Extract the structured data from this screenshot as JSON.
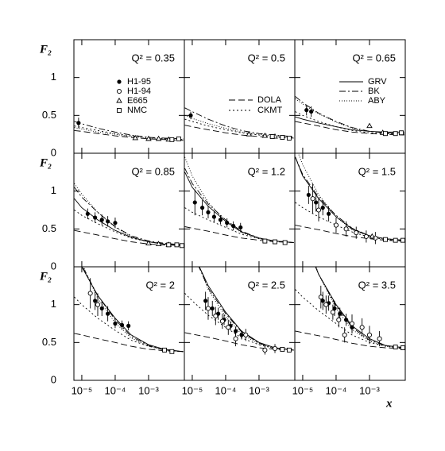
{
  "chart_data": {
    "type": "scatter",
    "ylabel": "F₂",
    "xlabel": "x",
    "xscale": "log",
    "xlim": [
      5.8e-06,
      0.0118
    ],
    "ylim": [
      0,
      1.5
    ],
    "xticks": [
      {
        "value": 1e-05,
        "label": "10⁻⁵"
      },
      {
        "value": 0.0001,
        "label": "10⁻⁴"
      },
      {
        "value": 0.001,
        "label": "10⁻³"
      }
    ],
    "yticks": [
      0,
      0.5,
      1
    ],
    "series": [
      {
        "name": "H1-95",
        "marker": "filled-circle"
      },
      {
        "name": "H1-94",
        "marker": "open-circle"
      },
      {
        "name": "E665",
        "marker": "triangle"
      },
      {
        "name": "NMC",
        "marker": "square"
      }
    ],
    "curves": [
      {
        "name": "DOLA",
        "dash": "8,4"
      },
      {
        "name": "CKMT",
        "dash": "2,3"
      },
      {
        "name": "GRV",
        "dash": "none"
      },
      {
        "name": "BK",
        "dash": "8,3,2,3"
      },
      {
        "name": "ABY",
        "dash": "1,2"
      }
    ],
    "curve_x": [
      6e-06,
      1e-05,
      3e-05,
      0.0001,
      0.0003,
      0.001,
      0.003,
      0.011
    ],
    "panels": [
      {
        "title": "Q² = 0.35",
        "points": [
          {
            "x": [
              8e-06
            ],
            "y": [
              0.4
            ],
            "err": [
              0.07
            ]
          },
          {
            "x": [],
            "y": [],
            "err": []
          },
          {
            "x": [
              0.0004,
              0.001,
              0.002,
              0.004
            ],
            "y": [
              0.2,
              0.19,
              0.19,
              0.18
            ],
            "err": [
              0.02,
              0.02,
              0.02,
              0.02
            ]
          },
          {
            "x": [
              0.005,
              0.008
            ],
            "y": [
              0.18,
              0.19
            ],
            "err": [
              0.01,
              0.01
            ]
          }
        ],
        "curves": [
          [
            0.3,
            0.29,
            0.26,
            0.23,
            0.21,
            0.19,
            0.18,
            0.17
          ],
          [
            0.36,
            0.34,
            0.3,
            0.26,
            0.23,
            0.21,
            0.19,
            0.18
          ],
          null,
          [
            0.42,
            0.39,
            0.33,
            0.28,
            0.24,
            0.21,
            0.2,
            0.19
          ],
          [
            0.34,
            0.32,
            0.28,
            0.25,
            0.22,
            0.2,
            0.19,
            0.18
          ]
        ]
      },
      {
        "title": "Q² = 0.5",
        "points": [
          {
            "x": [
              9e-06
            ],
            "y": [
              0.5
            ],
            "err": [
              0.05
            ]
          },
          {
            "x": [],
            "y": [],
            "err": []
          },
          {
            "x": [
              0.0005,
              0.0015,
              0.003
            ],
            "y": [
              0.25,
              0.23,
              0.22
            ],
            "err": [
              0.02,
              0.02,
              0.02
            ]
          },
          {
            "x": [
              0.0025,
              0.005,
              0.008
            ],
            "y": [
              0.22,
              0.21,
              0.2
            ],
            "err": [
              0.01,
              0.01,
              0.01
            ]
          }
        ],
        "curves": [
          [
            0.37,
            0.35,
            0.31,
            0.27,
            0.24,
            0.22,
            0.21,
            0.2
          ],
          [
            0.45,
            0.42,
            0.36,
            0.31,
            0.27,
            0.24,
            0.22,
            0.21
          ],
          null,
          [
            0.6,
            0.55,
            0.45,
            0.36,
            0.3,
            0.26,
            0.24,
            0.22
          ],
          [
            0.5,
            0.46,
            0.39,
            0.33,
            0.28,
            0.25,
            0.23,
            0.21
          ]
        ]
      },
      {
        "title": "Q² = 0.65",
        "points": [
          {
            "x": [
              1.3e-05,
              1.8e-05
            ],
            "y": [
              0.57,
              0.55
            ],
            "err": [
              0.07,
              0.07
            ]
          },
          {
            "x": [],
            "y": [],
            "err": []
          },
          {
            "x": [
              0.001,
              0.0025
            ],
            "y": [
              0.36,
              0.27
            ],
            "err": [
              0.02,
              0.02
            ]
          },
          {
            "x": [
              0.003,
              0.006,
              0.009
            ],
            "y": [
              0.26,
              0.26,
              0.27
            ],
            "err": [
              0.01,
              0.01,
              0.01
            ]
          }
        ],
        "curves": [
          [
            0.42,
            0.4,
            0.36,
            0.31,
            0.28,
            0.26,
            0.25,
            0.24
          ],
          [
            0.55,
            0.5,
            0.42,
            0.35,
            0.3,
            0.27,
            0.26,
            0.25
          ],
          [
            0.48,
            0.45,
            0.4,
            0.35,
            0.31,
            0.29,
            0.28,
            0.28
          ],
          [
            0.75,
            0.67,
            0.53,
            0.42,
            0.34,
            0.29,
            0.27,
            0.26
          ],
          [
            0.72,
            0.65,
            0.52,
            0.41,
            0.33,
            0.29,
            0.27,
            0.26
          ]
        ]
      },
      {
        "title": "Q² = 0.85",
        "points": [
          {
            "x": [
              1.5e-05,
              2.5e-05,
              4e-05,
              6e-05,
              0.0001
            ],
            "y": [
              0.7,
              0.65,
              0.62,
              0.6,
              0.58
            ],
            "err": [
              0.07,
              0.07,
              0.07,
              0.07,
              0.07
            ]
          },
          {
            "x": [],
            "y": [],
            "err": []
          },
          {
            "x": [
              0.001,
              0.002,
              0.004
            ],
            "y": [
              0.31,
              0.3,
              0.29
            ],
            "err": [
              0.02,
              0.02,
              0.02
            ]
          },
          {
            "x": [
              0.004,
              0.007,
              0.01
            ],
            "y": [
              0.29,
              0.29,
              0.28
            ],
            "err": [
              0.01,
              0.01,
              0.01
            ]
          }
        ],
        "curves": [
          [
            0.48,
            0.46,
            0.42,
            0.37,
            0.33,
            0.3,
            0.29,
            0.28
          ],
          [
            0.75,
            0.68,
            0.57,
            0.46,
            0.38,
            0.33,
            0.3,
            0.29
          ],
          [
            0.9,
            0.78,
            0.62,
            0.48,
            0.39,
            0.33,
            0.3,
            0.29
          ],
          [
            1.05,
            0.92,
            0.72,
            0.53,
            0.41,
            0.34,
            0.31,
            0.29
          ],
          [
            1.1,
            0.96,
            0.72,
            0.52,
            0.4,
            0.33,
            0.3,
            0.29
          ]
        ]
      },
      {
        "title": "Q² = 1.2",
        "points": [
          {
            "x": [
              1.2e-05,
              2e-05,
              3e-05,
              4.5e-05,
              7e-05,
              0.00011,
              0.00017,
              0.00028
            ],
            "y": [
              0.85,
              0.78,
              0.72,
              0.66,
              0.62,
              0.58,
              0.54,
              0.52
            ],
            "err": [
              0.17,
              0.1,
              0.08,
              0.07,
              0.06,
              0.06,
              0.06,
              0.06
            ]
          },
          {
            "x": [],
            "y": [],
            "err": []
          },
          {
            "x": [],
            "y": [],
            "err": []
          },
          {
            "x": [
              0.0015,
              0.003,
              0.006
            ],
            "y": [
              0.34,
              0.33,
              0.32
            ],
            "err": [
              0.01,
              0.01,
              0.01
            ]
          }
        ],
        "curves": [
          [
            0.53,
            0.51,
            0.47,
            0.42,
            0.38,
            0.35,
            0.33,
            0.32
          ],
          [
            0.78,
            0.72,
            0.62,
            0.52,
            0.43,
            0.37,
            0.34,
            0.32
          ],
          [
            1.25,
            1.05,
            0.8,
            0.6,
            0.46,
            0.38,
            0.34,
            0.32
          ],
          [
            1.3,
            1.1,
            0.83,
            0.62,
            0.47,
            0.38,
            0.34,
            0.32
          ],
          [
            1.45,
            1.2,
            0.85,
            0.6,
            0.45,
            0.37,
            0.34,
            0.32
          ]
        ]
      },
      {
        "title": "Q² = 1.5",
        "points": [
          {
            "x": [
              1.5e-05,
              2.5e-05,
              4e-05,
              6e-05
            ],
            "y": [
              0.95,
              0.85,
              0.78,
              0.7
            ],
            "err": [
              0.12,
              0.12,
              0.1,
              0.1
            ]
          },
          {
            "x": [
              2e-05,
              3e-05,
              0.0001,
              0.0002,
              0.0004,
              0.0008,
              0.0015
            ],
            "y": [
              0.9,
              0.75,
              0.55,
              0.5,
              0.45,
              0.4,
              0.38
            ],
            "err": [
              0.2,
              0.15,
              0.1,
              0.1,
              0.08,
              0.08,
              0.08
            ]
          },
          {
            "x": [
              0.0012
            ],
            "y": [
              0.4
            ],
            "err": [
              0.03
            ]
          },
          {
            "x": [
              0.003,
              0.006,
              0.01
            ],
            "y": [
              0.36,
              0.35,
              0.35
            ],
            "err": [
              0.01,
              0.01,
              0.01
            ]
          }
        ],
        "curves": [
          [
            0.55,
            0.53,
            0.49,
            0.44,
            0.4,
            0.37,
            0.35,
            0.34
          ],
          [
            0.85,
            0.78,
            0.66,
            0.55,
            0.46,
            0.39,
            0.36,
            0.34
          ],
          [
            1.45,
            1.2,
            0.9,
            0.66,
            0.5,
            0.41,
            0.37,
            0.35
          ],
          [
            1.45,
            1.22,
            0.92,
            0.68,
            0.51,
            0.41,
            0.37,
            0.35
          ],
          [
            1.6,
            1.35,
            0.95,
            0.66,
            0.49,
            0.4,
            0.36,
            0.35
          ]
        ]
      },
      {
        "title": "Q² = 2",
        "points": [
          {
            "x": [
              2.5e-05,
              4e-05,
              6e-05,
              0.0001,
              0.00016,
              0.00025
            ],
            "y": [
              1.05,
              0.95,
              0.88,
              0.75,
              0.73,
              0.72
            ],
            "err": [
              0.12,
              0.1,
              0.1,
              0.06,
              0.06,
              0.06
            ]
          },
          {
            "x": [
              1.8e-05,
              3e-05
            ],
            "y": [
              1.15,
              1.0
            ],
            "err": [
              0.2,
              0.15
            ]
          },
          {
            "x": [],
            "y": [],
            "err": []
          },
          {
            "x": [
              0.003,
              0.005
            ],
            "y": [
              0.4,
              0.38
            ],
            "err": [
              0.02,
              0.02
            ]
          }
        ],
        "curves": [
          [
            0.62,
            0.6,
            0.55,
            0.5,
            0.45,
            0.41,
            0.39,
            0.38
          ],
          [
            1.1,
            1.0,
            0.82,
            0.66,
            0.53,
            0.45,
            0.4,
            0.38
          ],
          [
            1.8,
            1.5,
            1.12,
            0.82,
            0.6,
            0.47,
            0.41,
            0.38
          ],
          [
            1.8,
            1.52,
            1.12,
            0.8,
            0.58,
            0.46,
            0.4,
            0.38
          ],
          [
            1.9,
            1.55,
            1.08,
            0.76,
            0.56,
            0.45,
            0.4,
            0.38
          ]
        ]
      },
      {
        "title": "Q² = 2.5",
        "points": [
          {
            "x": [
              2.5e-05,
              4e-05,
              6e-05,
              9e-05,
              0.00014,
              0.0002,
              0.0003
            ],
            "y": [
              1.05,
              0.95,
              0.88,
              0.8,
              0.72,
              0.65,
              0.6
            ],
            "err": [
              0.12,
              0.1,
              0.08,
              0.07,
              0.06,
              0.06,
              0.06
            ]
          },
          {
            "x": [
              3e-05,
              5e-05,
              8e-05,
              0.00012,
              0.0002,
              0.0004,
              0.0015,
              0.003
            ],
            "y": [
              0.95,
              0.85,
              0.78,
              0.7,
              0.55,
              0.6,
              0.4,
              0.42
            ],
            "err": [
              0.15,
              0.12,
              0.1,
              0.1,
              0.1,
              0.08,
              0.06,
              0.06
            ]
          },
          {
            "x": [],
            "y": [],
            "err": []
          },
          {
            "x": [
              0.005,
              0.008
            ],
            "y": [
              0.41,
              0.4
            ],
            "err": [
              0.02,
              0.02
            ]
          }
        ],
        "curves": [
          [
            0.63,
            0.61,
            0.57,
            0.52,
            0.47,
            0.43,
            0.41,
            0.4
          ],
          [
            1.15,
            1.05,
            0.86,
            0.7,
            0.56,
            0.47,
            0.42,
            0.4
          ],
          [
            2.0,
            1.7,
            1.25,
            0.9,
            0.65,
            0.5,
            0.43,
            0.4
          ],
          [
            2.0,
            1.7,
            1.22,
            0.88,
            0.64,
            0.49,
            0.43,
            0.4
          ],
          [
            2.1,
            1.75,
            1.2,
            0.84,
            0.61,
            0.48,
            0.42,
            0.4
          ]
        ]
      },
      {
        "title": "Q² = 3.5",
        "points": [
          {
            "x": [
              4e-05,
              6e-05,
              9e-05,
              0.00013,
              0.0002,
              0.0003
            ],
            "y": [
              1.05,
              1.02,
              0.95,
              0.88,
              0.8,
              0.7
            ],
            "err": [
              0.12,
              0.1,
              0.1,
              0.08,
              0.08,
              0.08
            ]
          },
          {
            "x": [
              3.5e-05,
              5e-05,
              8e-05,
              0.00012,
              0.00018,
              0.0003,
              0.0006,
              0.001,
              0.002
            ],
            "y": [
              1.1,
              1.0,
              0.9,
              0.8,
              0.6,
              0.75,
              0.7,
              0.6,
              0.55
            ],
            "err": [
              0.15,
              0.12,
              0.1,
              0.1,
              0.1,
              0.12,
              0.12,
              0.12,
              0.1
            ]
          },
          {
            "x": [],
            "y": [],
            "err": []
          },
          {
            "x": [
              0.006,
              0.01
            ],
            "y": [
              0.44,
              0.43
            ],
            "err": [
              0.02,
              0.02
            ]
          }
        ],
        "curves": [
          [
            0.65,
            0.63,
            0.59,
            0.54,
            0.49,
            0.45,
            0.43,
            0.42
          ],
          [
            1.2,
            1.1,
            0.92,
            0.75,
            0.6,
            0.5,
            0.45,
            0.42
          ],
          [
            2.3,
            1.9,
            1.4,
            1.0,
            0.72,
            0.55,
            0.46,
            0.43
          ],
          [
            2.3,
            1.95,
            1.4,
            0.98,
            0.7,
            0.53,
            0.46,
            0.43
          ],
          [
            2.4,
            2.0,
            1.4,
            0.95,
            0.67,
            0.52,
            0.45,
            0.42
          ]
        ]
      }
    ]
  }
}
